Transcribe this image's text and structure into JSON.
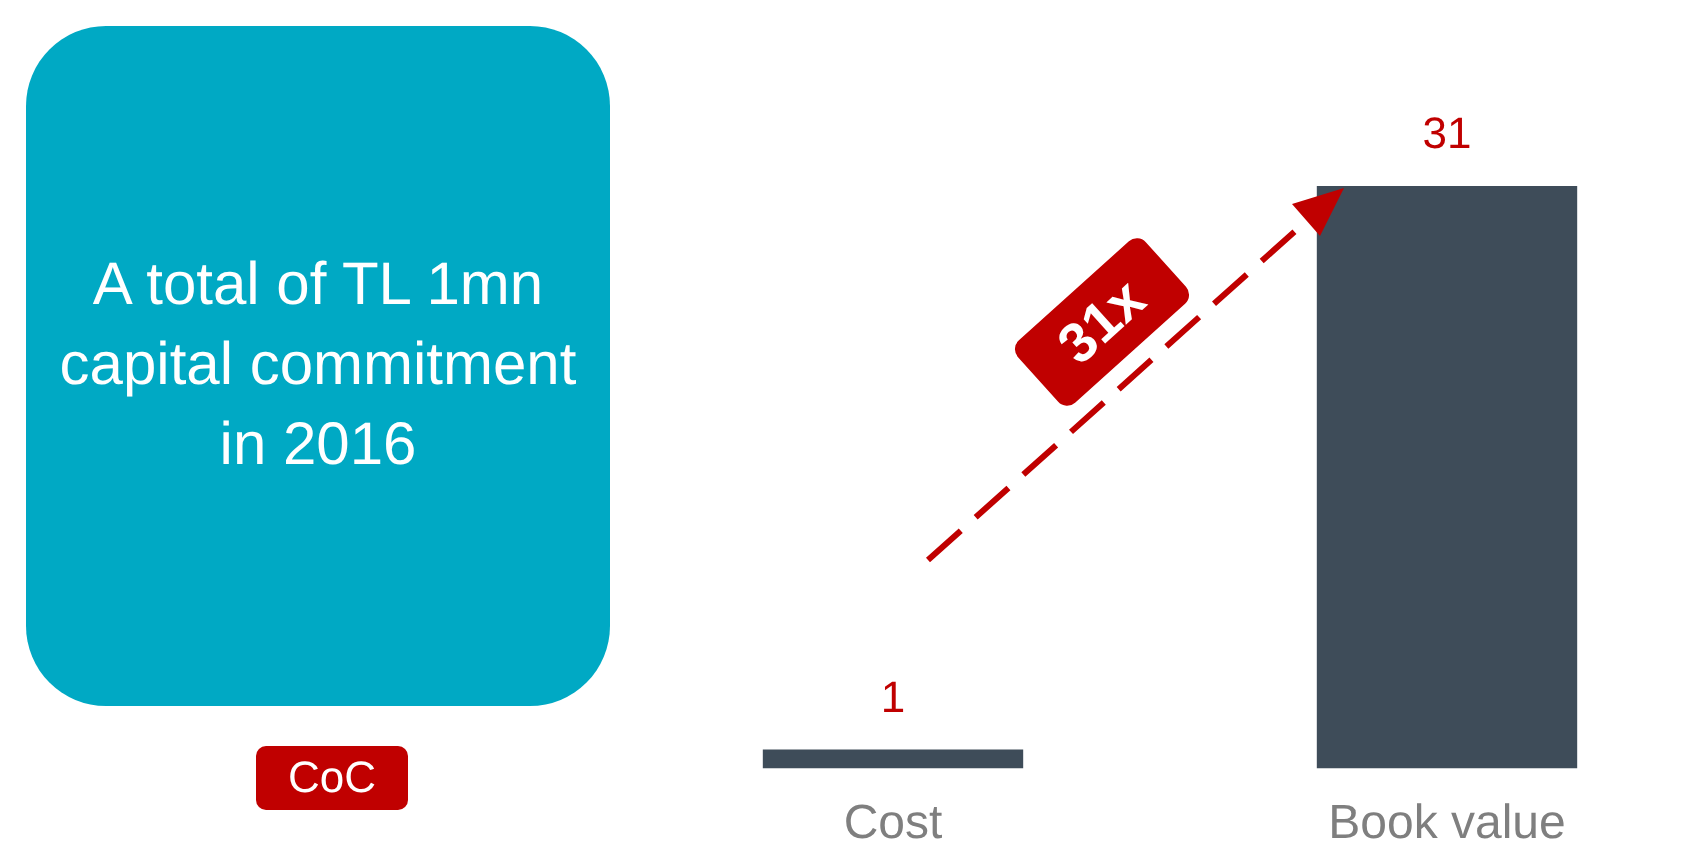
{
  "chart_data": {
    "type": "bar",
    "categories": [
      "Cost",
      "Book value"
    ],
    "values": [
      1,
      31
    ],
    "color": "#3e4c59",
    "data_labels": true,
    "grid": false,
    "legend": false,
    "annotations": [
      "A total of TL 1mn capital commitment in 2016",
      "31x",
      "CoC"
    ]
  }
}
